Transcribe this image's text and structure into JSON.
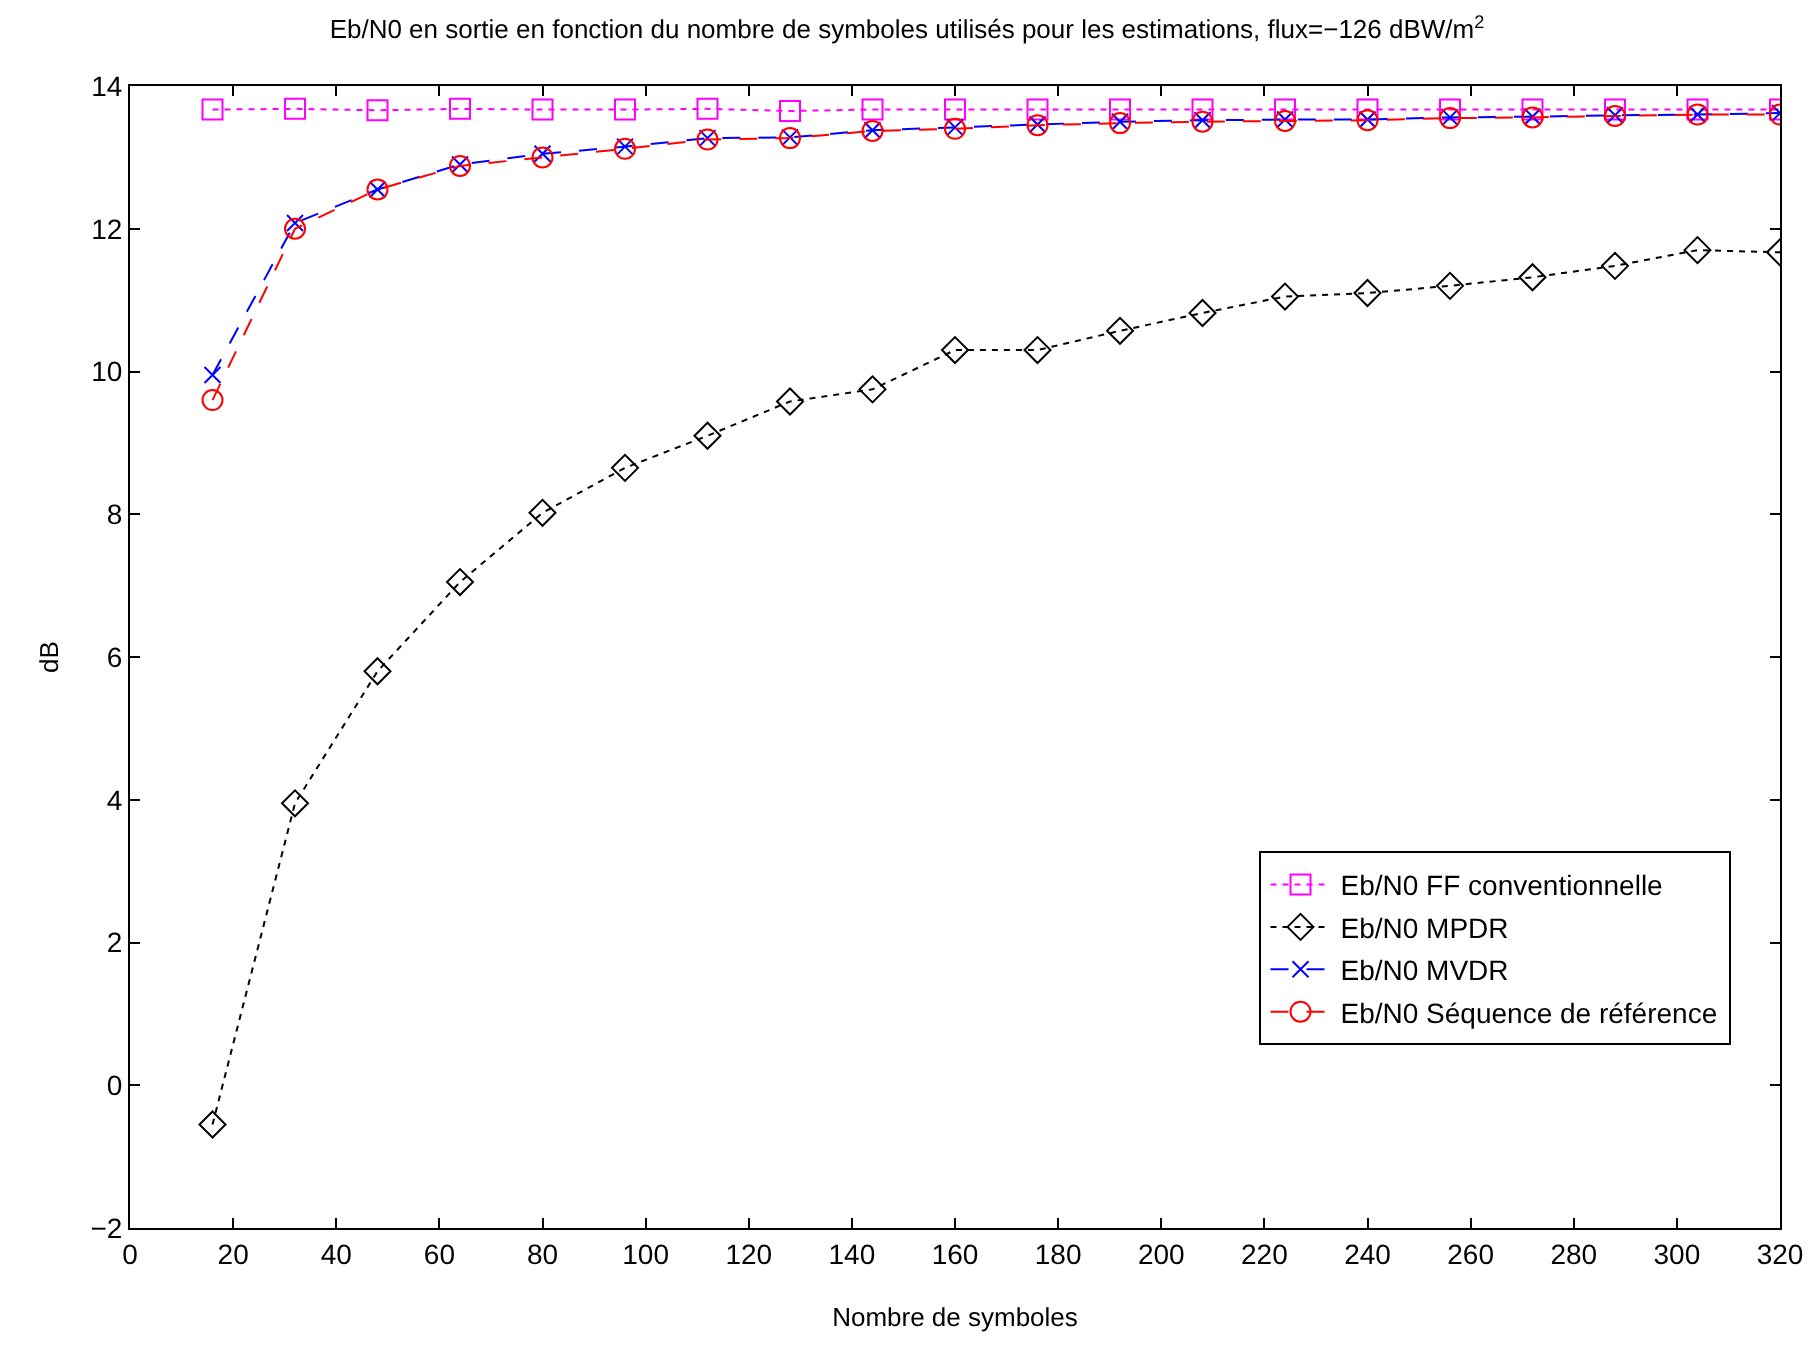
{
  "chart_data": {
    "type": "line",
    "title": "Eb/N0 en sortie en fonction du nombre de symboles utilisés pour les estimations, flux=−126 dBW/m$^{2}$",
    "xlabel": "Nombre de symboles",
    "ylabel": "dB",
    "x": [
      16,
      32,
      48,
      64,
      80,
      96,
      112,
      128,
      144,
      160,
      176,
      192,
      208,
      224,
      240,
      256,
      272,
      288,
      304,
      320
    ],
    "series": [
      {
        "name": "Eb/N0 FF conventionnelle",
        "color": "#ff00ff",
        "marker": "square",
        "line_style": "dotted",
        "values": [
          13.67,
          13.68,
          13.66,
          13.68,
          13.67,
          13.67,
          13.68,
          13.65,
          13.67,
          13.67,
          13.67,
          13.67,
          13.67,
          13.67,
          13.67,
          13.67,
          13.67,
          13.67,
          13.67,
          13.67
        ]
      },
      {
        "name": "Eb/N0 MPDR",
        "color": "#000000",
        "marker": "diamond",
        "line_style": "dotted",
        "values": [
          -0.55,
          3.95,
          5.8,
          7.05,
          8.02,
          8.65,
          9.1,
          9.58,
          9.75,
          10.3,
          10.3,
          10.57,
          10.82,
          11.05,
          11.1,
          11.2,
          11.32,
          11.48,
          11.7,
          11.67
        ]
      },
      {
        "name": "Eb/N0 MVDR",
        "color": "#0000ff",
        "marker": "cross",
        "line_style": "dashed",
        "values": [
          9.95,
          12.08,
          12.55,
          12.9,
          13.05,
          13.15,
          13.27,
          13.28,
          13.38,
          13.42,
          13.46,
          13.5,
          13.52,
          13.53,
          13.53,
          13.56,
          13.57,
          13.59,
          13.6,
          13.62
        ]
      },
      {
        "name": "Eb/N0 Séquence de référence",
        "color": "#ff0000",
        "marker": "circle",
        "line_style": "dashed",
        "values": [
          9.6,
          12.0,
          12.55,
          12.88,
          13.0,
          13.12,
          13.25,
          13.27,
          13.37,
          13.4,
          13.45,
          13.48,
          13.5,
          13.51,
          13.52,
          13.55,
          13.56,
          13.58,
          13.6,
          13.6
        ]
      }
    ],
    "xlim": [
      0,
      320
    ],
    "xticks": [
      0,
      20,
      40,
      60,
      80,
      100,
      120,
      140,
      160,
      180,
      200,
      220,
      240,
      260,
      280,
      300,
      320
    ],
    "ylim": [
      -2,
      14
    ],
    "yticks": [
      {
        "value": -2,
        "label": "−2"
      },
      0,
      2,
      4,
      6,
      8,
      10,
      12,
      14
    ],
    "grid": false,
    "legend": "bottom right"
  }
}
